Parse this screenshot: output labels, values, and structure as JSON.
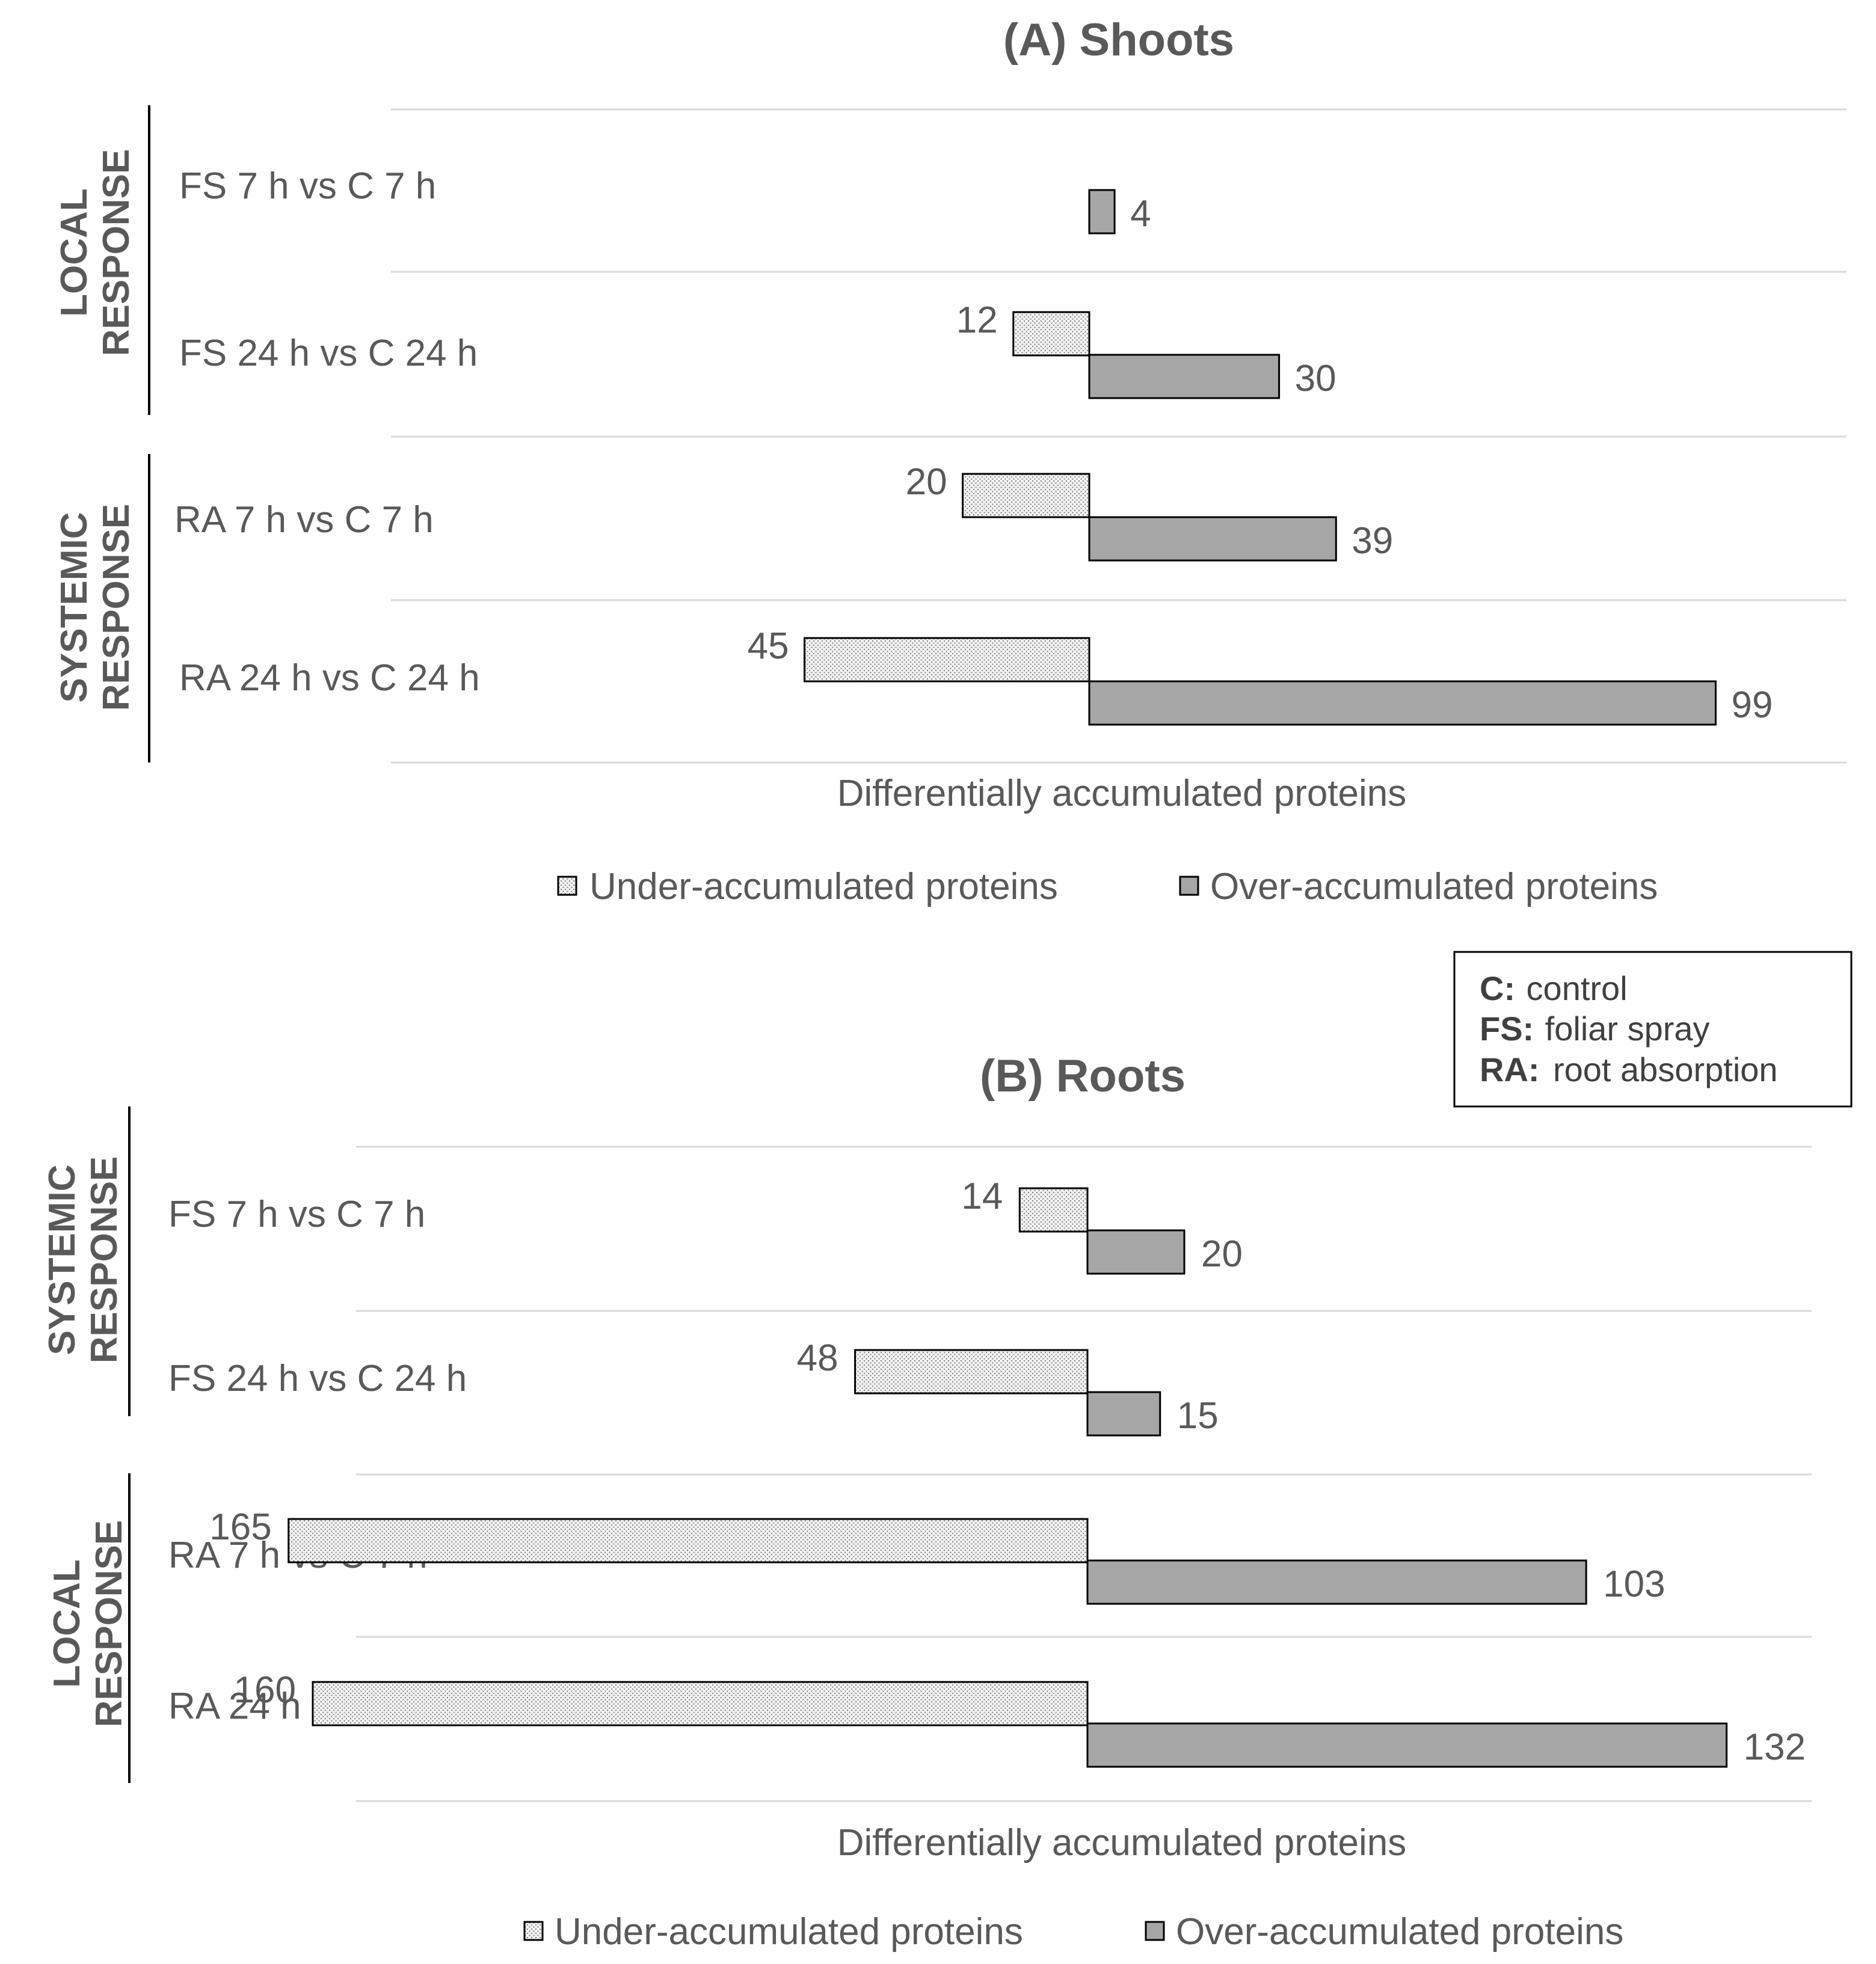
{
  "colors": {
    "text": "#595959",
    "over_fill": "#a6a6a6",
    "under_fill": "#f2f2f2",
    "under_dot": "#7f7f7f",
    "bar_stroke": "#000000",
    "grid": "#d9d9d9"
  },
  "note_box": {
    "items": [
      {
        "key": "C:",
        "value": "control"
      },
      {
        "key": "FS:",
        "value": "foliar spray"
      },
      {
        "key": "RA:",
        "value": "root absorption"
      }
    ]
  },
  "chart_data": [
    {
      "type": "bar",
      "orientation": "horizontal-diverging",
      "title": "(A) Shoots",
      "xlabel": "Differentially accumulated proteins",
      "legend": [
        "Under-accumulated proteins",
        "Over-accumulated proteins"
      ],
      "groups": [
        {
          "label_lines": [
            "LOCAL",
            "RESPONSE"
          ],
          "categories": [
            0,
            1
          ]
        },
        {
          "label_lines": [
            "SYSTEMIC",
            "RESPONSE"
          ],
          "categories": [
            2,
            3
          ]
        }
      ],
      "categories": [
        "FS 7 h vs C 7 h",
        "FS 24 h vs C 24 h",
        "RA 7 h vs C 7 h",
        "RA 24 h vs C 24 h"
      ],
      "series": [
        {
          "name": "Under-accumulated proteins",
          "values": [
            null,
            12,
            20,
            45
          ],
          "labels": [
            "",
            "12",
            "20",
            "45"
          ]
        },
        {
          "name": "Over-accumulated proteins",
          "values": [
            4,
            30,
            39,
            99
          ],
          "labels": [
            "4",
            "30",
            "39",
            "99"
          ]
        }
      ]
    },
    {
      "type": "bar",
      "orientation": "horizontal-diverging",
      "title": "(B) Roots",
      "xlabel": "Differentially accumulated proteins",
      "legend": [
        "Under-accumulated proteins",
        "Over-accumulated proteins"
      ],
      "groups": [
        {
          "label_lines": [
            "SYSTEMIC",
            "RESPONSE"
          ],
          "categories": [
            0,
            1
          ]
        },
        {
          "label_lines": [
            "LOCAL",
            "RESPONSE"
          ],
          "categories": [
            2,
            3
          ]
        }
      ],
      "categories": [
        "FS 7 h vs C 7 h",
        "FS 24 h vs C 24 h",
        "RA 7 h vs C 7 h",
        "RA 24 h vs C 24 h"
      ],
      "series": [
        {
          "name": "Under-accumulated proteins",
          "values": [
            14,
            48,
            165,
            160
          ],
          "labels": [
            "14",
            "48",
            "165",
            "160"
          ]
        },
        {
          "name": "Over-accumulated proteins",
          "values": [
            20,
            15,
            103,
            132
          ],
          "labels": [
            "20",
            "15",
            "103",
            "132"
          ]
        }
      ]
    }
  ]
}
